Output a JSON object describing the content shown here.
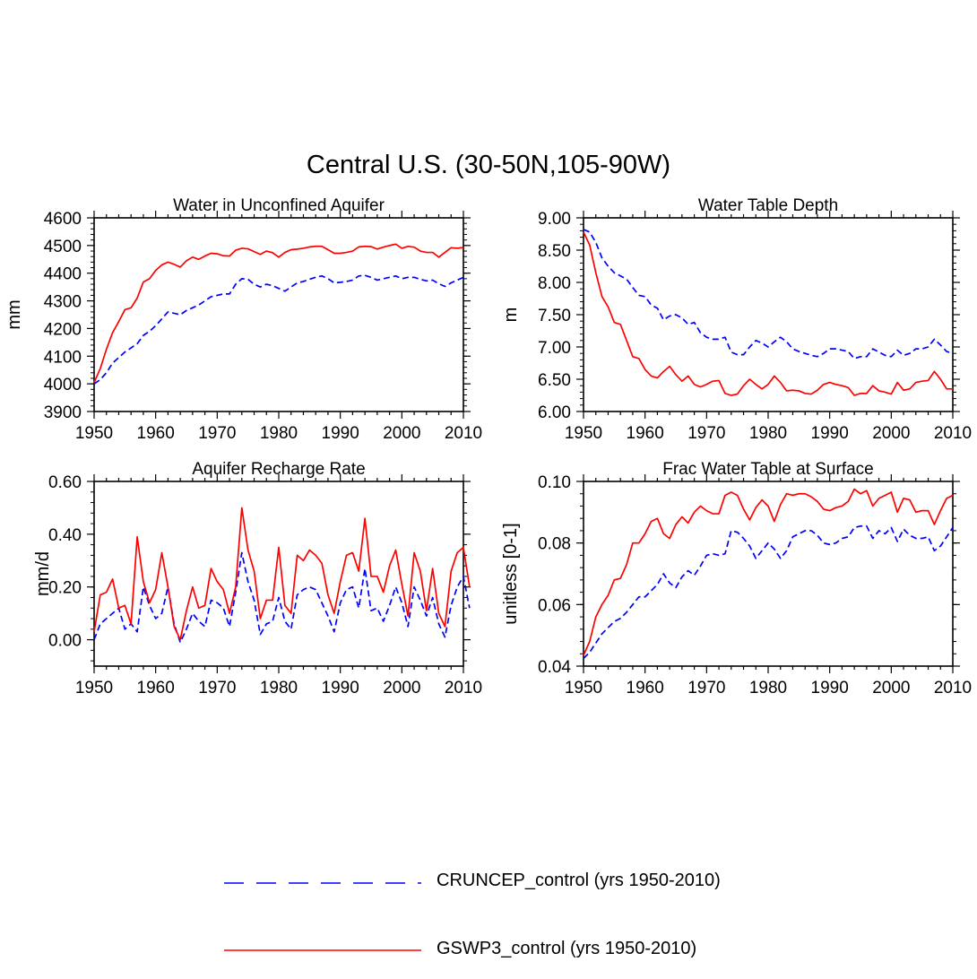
{
  "figure": {
    "title": "Central U.S. (30-50N,105-90W)"
  },
  "colors": {
    "CRUNCEP_control": "#0000ff",
    "GSWP3_control": "#ff0000",
    "axis": "#000000"
  },
  "legend": {
    "items": [
      {
        "label": "CRUNCEP_control (yrs 1950-2010)",
        "style": "dashed",
        "series": "CRUNCEP_control"
      },
      {
        "label": "GSWP3_control (yrs 1950-2010)",
        "style": "solid",
        "series": "GSWP3_control"
      }
    ]
  },
  "chart_data": [
    {
      "type": "line",
      "title": "Water in Unconfined Aquifer",
      "xlabel": "",
      "ylabel": "mm",
      "xlim": [
        1950,
        2010
      ],
      "ylim": [
        3900,
        4600
      ],
      "xticks": [
        1950,
        1960,
        1970,
        1980,
        1990,
        2000,
        2010
      ],
      "xtick_labels": [
        "1950",
        "1960",
        "1970",
        "1980",
        "1990",
        "2000",
        "2010"
      ],
      "yticks": [
        3900,
        4000,
        4100,
        4200,
        4300,
        4400,
        4500,
        4600
      ],
      "ytick_labels": [
        "3900",
        "4000",
        "4100",
        "4200",
        "4300",
        "4400",
        "4500",
        "4600"
      ],
      "x_start": 1950,
      "series": [
        {
          "name": "CRUNCEP_control",
          "style": "dashed",
          "values": [
            4000,
            4015,
            4040,
            4075,
            4095,
            4115,
            4130,
            4145,
            4175,
            4190,
            4210,
            4235,
            4260,
            4255,
            4250,
            4265,
            4275,
            4285,
            4300,
            4315,
            4320,
            4325,
            4325,
            4360,
            4380,
            4378,
            4360,
            4350,
            4360,
            4355,
            4345,
            4335,
            4350,
            4365,
            4370,
            4378,
            4385,
            4390,
            4380,
            4365,
            4367,
            4370,
            4375,
            4390,
            4392,
            4385,
            4375,
            4380,
            4385,
            4390,
            4380,
            4385,
            4385,
            4378,
            4372,
            4375,
            4362,
            4352,
            4365,
            4375,
            4385
          ]
        },
        {
          "name": "GSWP3_control",
          "style": "solid",
          "values": [
            4005,
            4055,
            4125,
            4185,
            4225,
            4268,
            4275,
            4310,
            4368,
            4380,
            4410,
            4430,
            4440,
            4432,
            4422,
            4445,
            4458,
            4450,
            4462,
            4472,
            4470,
            4463,
            4462,
            4483,
            4490,
            4488,
            4478,
            4468,
            4480,
            4474,
            4458,
            4475,
            4485,
            4487,
            4490,
            4495,
            4497,
            4497,
            4485,
            4472,
            4472,
            4475,
            4480,
            4495,
            4497,
            4496,
            4487,
            4494,
            4500,
            4505,
            4490,
            4497,
            4494,
            4480,
            4475,
            4475,
            4458,
            4475,
            4492,
            4490,
            4493
          ]
        }
      ]
    },
    {
      "type": "line",
      "title": "Water Table Depth",
      "xlabel": "",
      "ylabel": "m",
      "xlim": [
        1950,
        2010
      ],
      "ylim": [
        6.0,
        9.0
      ],
      "xticks": [
        1950,
        1960,
        1970,
        1980,
        1990,
        2000,
        2010
      ],
      "xtick_labels": [
        "1950",
        "1960",
        "1970",
        "1980",
        "1990",
        "2000",
        "2010"
      ],
      "yticks": [
        6.0,
        6.5,
        7.0,
        7.5,
        8.0,
        8.5,
        9.0
      ],
      "ytick_labels": [
        "6.00",
        "6.50",
        "7.00",
        "7.50",
        "8.00",
        "8.50",
        "9.00"
      ],
      "x_start": 1950,
      "series": [
        {
          "name": "CRUNCEP_control",
          "style": "dashed",
          "values": [
            8.82,
            8.78,
            8.62,
            8.38,
            8.25,
            8.15,
            8.1,
            8.05,
            7.92,
            7.8,
            7.78,
            7.65,
            7.6,
            7.42,
            7.48,
            7.5,
            7.45,
            7.35,
            7.38,
            7.22,
            7.15,
            7.12,
            7.12,
            7.15,
            6.92,
            6.88,
            6.88,
            7.0,
            7.1,
            7.06,
            7.0,
            7.08,
            7.15,
            7.08,
            6.97,
            6.93,
            6.9,
            6.87,
            6.85,
            6.9,
            6.97,
            6.97,
            6.95,
            6.93,
            6.82,
            6.85,
            6.85,
            6.97,
            6.92,
            6.87,
            6.85,
            6.95,
            6.87,
            6.9,
            6.97,
            6.97,
            7.0,
            7.12,
            7.03,
            6.93,
            6.9
          ]
        },
        {
          "name": "GSWP3_control",
          "style": "solid",
          "values": [
            8.78,
            8.58,
            8.15,
            7.78,
            7.62,
            7.38,
            7.35,
            7.1,
            6.85,
            6.82,
            6.65,
            6.55,
            6.52,
            6.62,
            6.7,
            6.57,
            6.47,
            6.55,
            6.42,
            6.38,
            6.42,
            6.47,
            6.48,
            6.28,
            6.25,
            6.27,
            6.4,
            6.5,
            6.42,
            6.35,
            6.42,
            6.55,
            6.45,
            6.32,
            6.33,
            6.32,
            6.28,
            6.27,
            6.33,
            6.42,
            6.45,
            6.42,
            6.4,
            6.37,
            6.25,
            6.28,
            6.28,
            6.4,
            6.32,
            6.3,
            6.27,
            6.45,
            6.33,
            6.35,
            6.45,
            6.47,
            6.48,
            6.62,
            6.5,
            6.35,
            6.35
          ]
        }
      ]
    },
    {
      "type": "line",
      "title": "Aquifer Recharge Rate",
      "xlabel": "",
      "ylabel": "mm/d",
      "xlim": [
        1950,
        2010
      ],
      "ylim": [
        -0.1,
        0.6
      ],
      "xticks": [
        1950,
        1960,
        1970,
        1980,
        1990,
        2000,
        2010
      ],
      "xtick_labels": [
        "1950",
        "1960",
        "1970",
        "1980",
        "1990",
        "2000",
        "2010"
      ],
      "yticks": [
        0.0,
        0.2,
        0.4,
        0.6
      ],
      "ytick_labels": [
        "0.00",
        "0.20",
        "0.40",
        "0.60"
      ],
      "x_start": 1950,
      "series": [
        {
          "name": "CRUNCEP_control",
          "style": "dashed",
          "values": [
            0.0,
            0.06,
            0.08,
            0.1,
            0.12,
            0.04,
            0.06,
            0.03,
            0.2,
            0.13,
            0.08,
            0.1,
            0.2,
            0.06,
            -0.01,
            0.04,
            0.1,
            0.07,
            0.05,
            0.15,
            0.14,
            0.12,
            0.05,
            0.18,
            0.33,
            0.22,
            0.15,
            0.02,
            0.06,
            0.07,
            0.16,
            0.07,
            0.04,
            0.17,
            0.19,
            0.2,
            0.19,
            0.14,
            0.09,
            0.03,
            0.14,
            0.19,
            0.2,
            0.12,
            0.27,
            0.11,
            0.12,
            0.07,
            0.13,
            0.2,
            0.14,
            0.05,
            0.2,
            0.15,
            0.09,
            0.16,
            0.06,
            0.01,
            0.13,
            0.2,
            0.24,
            0.12
          ]
        },
        {
          "name": "GSWP3_control",
          "style": "solid",
          "values": [
            0.03,
            0.17,
            0.18,
            0.23,
            0.12,
            0.13,
            0.06,
            0.39,
            0.22,
            0.14,
            0.19,
            0.33,
            0.2,
            0.05,
            0.0,
            0.11,
            0.2,
            0.12,
            0.13,
            0.27,
            0.22,
            0.19,
            0.1,
            0.2,
            0.5,
            0.34,
            0.26,
            0.08,
            0.15,
            0.15,
            0.35,
            0.13,
            0.1,
            0.32,
            0.3,
            0.34,
            0.32,
            0.29,
            0.17,
            0.1,
            0.22,
            0.32,
            0.33,
            0.26,
            0.46,
            0.24,
            0.24,
            0.18,
            0.28,
            0.34,
            0.21,
            0.09,
            0.33,
            0.26,
            0.11,
            0.27,
            0.1,
            0.05,
            0.26,
            0.33,
            0.35,
            0.2
          ]
        }
      ]
    },
    {
      "type": "line",
      "title": "Frac Water Table at Surface",
      "xlabel": "",
      "ylabel": "unitless [0-1]",
      "xlim": [
        1950,
        2010
      ],
      "ylim": [
        0.04,
        0.1
      ],
      "xticks": [
        1950,
        1960,
        1970,
        1980,
        1990,
        2000,
        2010
      ],
      "xtick_labels": [
        "1950",
        "1960",
        "1970",
        "1980",
        "1990",
        "2000",
        "2010"
      ],
      "yticks": [
        0.04,
        0.06,
        0.08,
        0.1
      ],
      "ytick_labels": [
        "0.04",
        "0.06",
        "0.08",
        "0.10"
      ],
      "x_start": 1950,
      "series": [
        {
          "name": "CRUNCEP_control",
          "style": "dashed",
          "values": [
            0.0425,
            0.0445,
            0.0475,
            0.0505,
            0.0525,
            0.0545,
            0.0555,
            0.0575,
            0.06,
            0.0625,
            0.0625,
            0.0645,
            0.0665,
            0.07,
            0.067,
            0.0655,
            0.069,
            0.071,
            0.0695,
            0.0725,
            0.076,
            0.0765,
            0.076,
            0.0765,
            0.084,
            0.0835,
            0.0815,
            0.079,
            0.075,
            0.0775,
            0.08,
            0.078,
            0.075,
            0.0775,
            0.082,
            0.083,
            0.084,
            0.084,
            0.0825,
            0.08,
            0.0795,
            0.08,
            0.0815,
            0.082,
            0.085,
            0.0855,
            0.0855,
            0.0815,
            0.084,
            0.083,
            0.085,
            0.0805,
            0.0845,
            0.0825,
            0.0815,
            0.0815,
            0.082,
            0.0775,
            0.079,
            0.082,
            0.085
          ]
        },
        {
          "name": "GSWP3_control",
          "style": "solid",
          "values": [
            0.0435,
            0.048,
            0.056,
            0.06,
            0.063,
            0.068,
            0.0685,
            0.073,
            0.08,
            0.08,
            0.083,
            0.087,
            0.088,
            0.083,
            0.0815,
            0.086,
            0.0885,
            0.0865,
            0.09,
            0.092,
            0.0905,
            0.0895,
            0.0895,
            0.0955,
            0.0965,
            0.0955,
            0.091,
            0.0875,
            0.0915,
            0.094,
            0.092,
            0.087,
            0.0925,
            0.096,
            0.0955,
            0.096,
            0.096,
            0.095,
            0.0935,
            0.091,
            0.0905,
            0.0915,
            0.092,
            0.0935,
            0.0975,
            0.096,
            0.097,
            0.092,
            0.0945,
            0.0955,
            0.0965,
            0.09,
            0.0945,
            0.094,
            0.09,
            0.0905,
            0.0905,
            0.086,
            0.0905,
            0.0945,
            0.0955
          ]
        }
      ]
    }
  ]
}
